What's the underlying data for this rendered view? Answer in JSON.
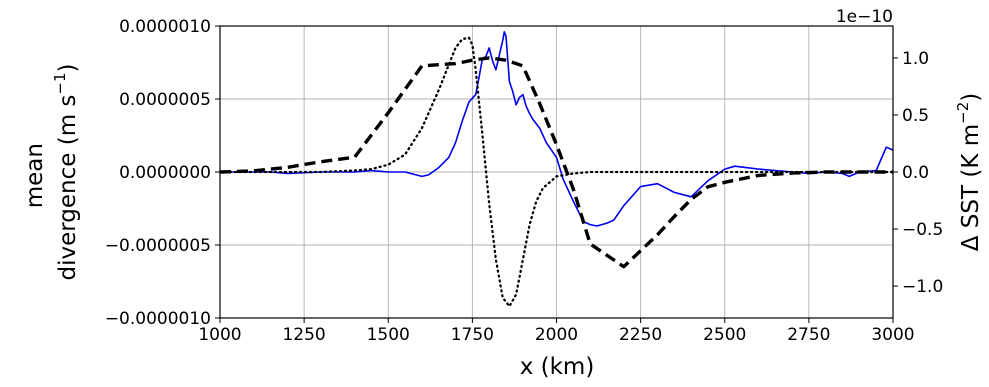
{
  "chart_data": {
    "type": "line",
    "xlabel": "x (km)",
    "ylabel_left_lines": [
      "mean",
      "divergence (m s"
    ],
    "ylabel_left_unit_sup": "−1",
    "ylabel_left_close": ")",
    "ylabel_right": "Δ SST (K m",
    "ylabel_right_sup": "−2",
    "ylabel_right_close": ")",
    "right_axis_offset": "1e−10",
    "xlim": [
      1000,
      3000
    ],
    "ylim_left": [
      -1e-06,
      1e-06
    ],
    "ylim_right": [
      -1.28,
      1.28
    ],
    "xticks": [
      {
        "value": 1000,
        "label": "1000"
      },
      {
        "value": 1250,
        "label": "1250"
      },
      {
        "value": 1500,
        "label": "1500"
      },
      {
        "value": 1750,
        "label": "1750"
      },
      {
        "value": 2000,
        "label": "2000"
      },
      {
        "value": 2250,
        "label": "2250"
      },
      {
        "value": 2500,
        "label": "2500"
      },
      {
        "value": 2750,
        "label": "2750"
      },
      {
        "value": 3000,
        "label": "3000"
      }
    ],
    "yticks_left": [
      {
        "value": 1e-06,
        "label": "0.0000010"
      },
      {
        "value": 5e-07,
        "label": "0.0000005"
      },
      {
        "value": 0,
        "label": "0.0000000"
      },
      {
        "value": -5e-07,
        "label": "−0.0000005"
      },
      {
        "value": -1e-06,
        "label": "−0.0000010"
      }
    ],
    "yticks_right": [
      {
        "value": 1.0,
        "label": "1.0"
      },
      {
        "value": 0.5,
        "label": "0.5"
      },
      {
        "value": 0.0,
        "label": "0.0"
      },
      {
        "value": -0.5,
        "label": "−0.5"
      },
      {
        "value": -1.0,
        "label": "−1.0"
      }
    ],
    "grid": true,
    "series": [
      {
        "axis": "left",
        "color": "#0000ee",
        "style": "solid",
        "x": [
          1000,
          1100,
          1150,
          1200,
          1300,
          1400,
          1450,
          1500,
          1550,
          1600,
          1620,
          1650,
          1680,
          1700,
          1720,
          1740,
          1760,
          1770,
          1780,
          1790,
          1800,
          1810,
          1820,
          1830,
          1840,
          1845,
          1850,
          1860,
          1870,
          1880,
          1890,
          1900,
          1910,
          1920,
          1930,
          1950,
          1970,
          2000,
          2020,
          2050,
          2080,
          2100,
          2120,
          2150,
          2170,
          2200,
          2250,
          2300,
          2350,
          2400,
          2450,
          2500,
          2530,
          2600,
          2650,
          2700,
          2750,
          2800,
          2850,
          2870,
          2900,
          2950,
          2980,
          3000
        ],
        "y": [
          0,
          0,
          0,
          -1e-08,
          0,
          0,
          1e-08,
          0,
          0,
          -3e-08,
          -2e-08,
          3e-08,
          1e-07,
          2e-07,
          3.5e-07,
          4.8e-07,
          5.3e-07,
          6.5e-07,
          7.8e-07,
          7.9e-07,
          8.5e-07,
          7.6e-07,
          7e-07,
          8e-07,
          9e-07,
          9.6e-07,
          9.3e-07,
          6.2e-07,
          5.5e-07,
          4.6e-07,
          5.1e-07,
          5.3e-07,
          4.5e-07,
          4e-07,
          3.6e-07,
          3e-07,
          2e-07,
          1e-07,
          -5e-08,
          -2e-07,
          -3.4e-07,
          -3.6e-07,
          -3.7e-07,
          -3.5e-07,
          -3.3e-07,
          -2.3e-07,
          -1e-07,
          -8e-08,
          -1.4e-07,
          -1.7e-07,
          -6e-08,
          2e-08,
          4e-08,
          2e-08,
          1e-08,
          0,
          -1e-08,
          0,
          -1e-08,
          -3e-08,
          0,
          1e-08,
          1.7e-07,
          1.5e-07
        ]
      },
      {
        "axis": "right",
        "color": "#000000",
        "style": "dashed",
        "x": [
          1000,
          1100,
          1200,
          1300,
          1400,
          1500,
          1600,
          1700,
          1750,
          1800,
          1850,
          1900,
          1950,
          2000,
          2050,
          2100,
          2150,
          2200,
          2250,
          2300,
          2350,
          2400,
          2450,
          2500,
          2600,
          2700,
          2800,
          2900,
          3000
        ],
        "y": [
          0,
          0.01,
          0.04,
          0.09,
          0.13,
          0.52,
          0.93,
          0.95,
          0.98,
          1.0,
          0.98,
          0.93,
          0.6,
          0.24,
          -0.15,
          -0.63,
          -0.73,
          -0.83,
          -0.69,
          -0.55,
          -0.39,
          -0.24,
          -0.13,
          -0.09,
          -0.03,
          -0.01,
          0,
          0,
          0
        ]
      },
      {
        "axis": "left",
        "color": "#000000",
        "style": "dotted",
        "x": [
          1000,
          1300,
          1400,
          1450,
          1500,
          1550,
          1600,
          1650,
          1700,
          1720,
          1740,
          1750,
          1760,
          1780,
          1800,
          1820,
          1840,
          1860,
          1880,
          1900,
          1920,
          1940,
          1960,
          2000,
          2050,
          2100,
          2150,
          2200,
          2300,
          2400,
          2500,
          2600,
          2800,
          3000
        ],
        "y": [
          0,
          0,
          1e-08,
          2e-08,
          5e-08,
          1.2e-07,
          3e-07,
          5.6e-07,
          8.5e-07,
          9.1e-07,
          9.2e-07,
          8.7e-07,
          7e-07,
          2.5e-07,
          -2.2e-07,
          -6e-07,
          -8.6e-07,
          -9.2e-07,
          -8.4e-07,
          -6e-07,
          -3.6e-07,
          -2e-07,
          -1.1e-07,
          -3e-08,
          -1e-08,
          0,
          0,
          0,
          0,
          0,
          0,
          0,
          0,
          0
        ]
      }
    ]
  }
}
